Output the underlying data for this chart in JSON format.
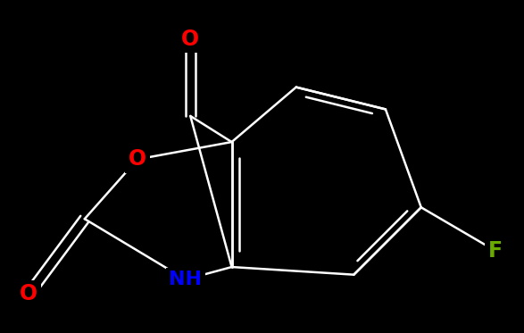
{
  "background_color": "#000000",
  "bond_color": "#ffffff",
  "atom_colors": {
    "O": "#ff0000",
    "N": "#0000ff",
    "F": "#6aaa00",
    "H": "#ffffff",
    "C": "#ffffff"
  },
  "bond_width": 1.8,
  "font_size_atom": 14,
  "fig_width": 5.87,
  "fig_height": 3.73
}
